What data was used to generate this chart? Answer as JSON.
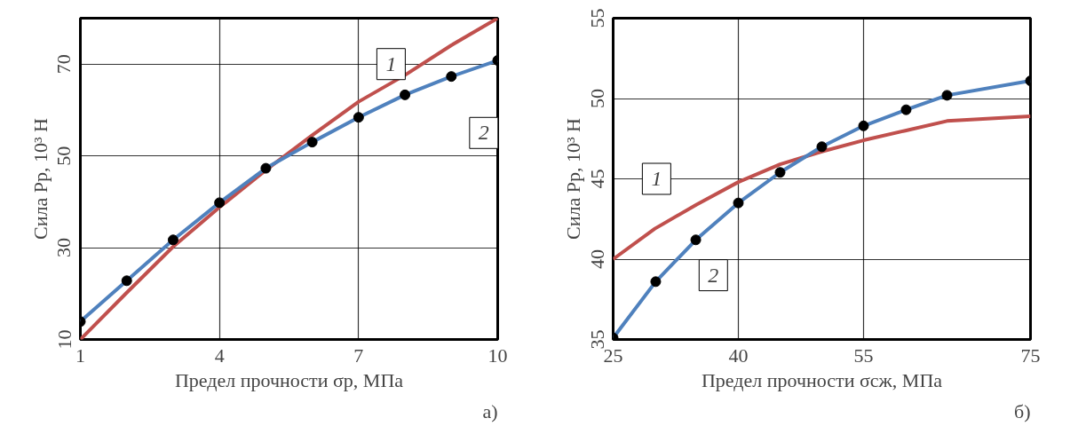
{
  "chart_data": [
    {
      "type": "line",
      "xlabel": "Предел прочности σр, МПа",
      "ylabel": "Сила Pр, 10³ Н",
      "xlim": [
        1,
        10
      ],
      "ylim": [
        10,
        80
      ],
      "xticks": [
        1,
        4,
        7,
        10
      ],
      "yticks": [
        10,
        30,
        50,
        70
      ],
      "grid": true,
      "series": [
        {
          "color": "#c0504d",
          "x": [
            1,
            2,
            3,
            4,
            5,
            6,
            7,
            8,
            9,
            10
          ],
          "values": [
            10,
            20.2,
            30.2,
            38.8,
            46.9,
            54.5,
            61.8,
            67.6,
            74.1,
            80
          ],
          "marker": "none"
        },
        {
          "color": "#4f81bd",
          "x": [
            1,
            2,
            3,
            4,
            5,
            6,
            7,
            8,
            9,
            10
          ],
          "values": [
            13.9,
            22.8,
            31.7,
            39.8,
            47.3,
            53.0,
            58.4,
            63.3,
            67.3,
            70.8
          ],
          "marker": "circle"
        }
      ],
      "annotations": [
        {
          "text": "1",
          "x": 7.7,
          "y": 70
        },
        {
          "text": "2",
          "x": 9.7,
          "y": 55
        },
        "а)"
      ]
    },
    {
      "type": "line",
      "xlabel": "Предел прочности σсж, МПа",
      "ylabel": "Сила Pр, 10³ Н",
      "xlim": [
        25,
        75
      ],
      "ylim": [
        35,
        55
      ],
      "xticks": [
        25,
        40,
        55,
        75
      ],
      "yticks": [
        35,
        40,
        45,
        50,
        55
      ],
      "grid": true,
      "series": [
        {
          "color": "#c0504d",
          "x": [
            25,
            30,
            35,
            40,
            45,
            50,
            55,
            60,
            65,
            75
          ],
          "values": [
            40.0,
            41.9,
            43.4,
            44.8,
            45.9,
            46.7,
            47.4,
            48.0,
            48.6,
            48.9
          ],
          "marker": "none"
        },
        {
          "color": "#4f81bd",
          "x": [
            25,
            30.1,
            34.9,
            40,
            45,
            50,
            55,
            60.1,
            65,
            75
          ],
          "values": [
            35.1,
            38.6,
            41.2,
            43.5,
            45.4,
            47.0,
            48.3,
            49.3,
            50.2,
            51.1
          ],
          "marker": "circle"
        }
      ],
      "annotations": [
        {
          "text": "1",
          "x": 30.2,
          "y": 45
        },
        {
          "text": "2",
          "x": 37,
          "y": 39
        },
        "б)"
      ]
    }
  ]
}
